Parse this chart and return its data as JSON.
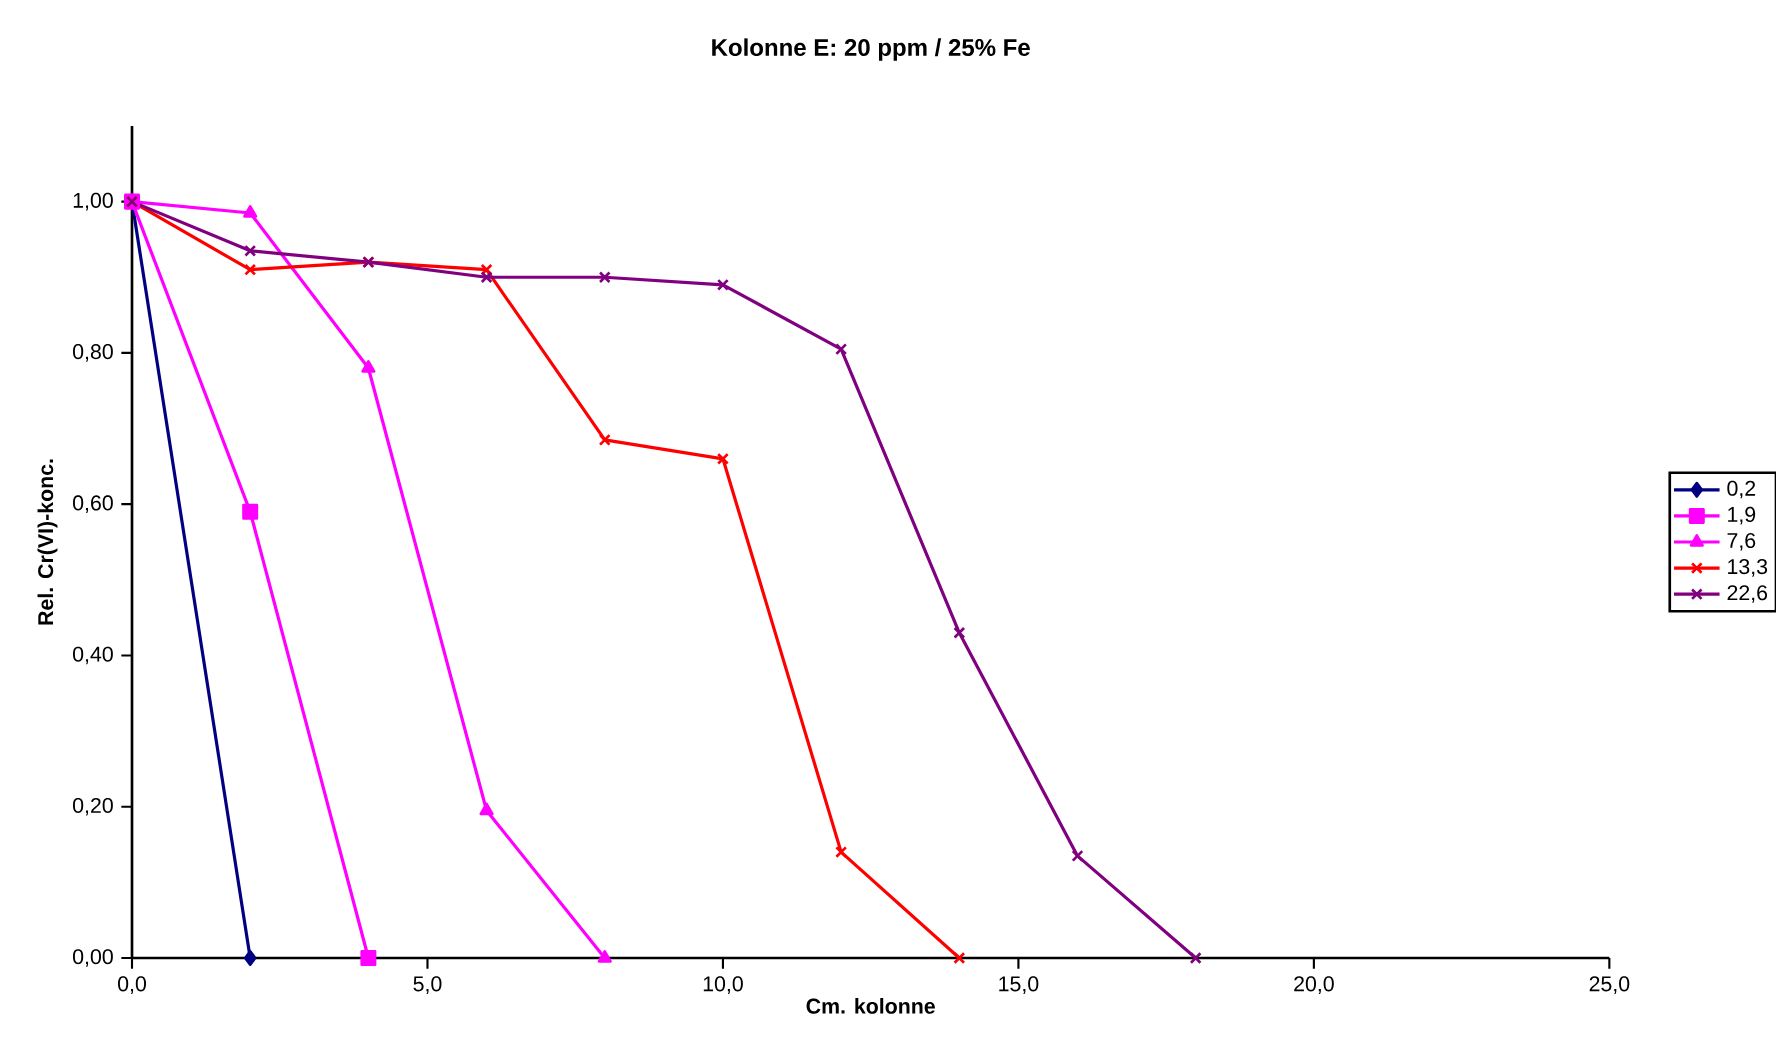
{
  "chart_data": {
    "type": "line",
    "title": "Kolonne E: 20 ppm / 25% Fe",
    "xlabel": "Cm. kolonne",
    "ylabel": "Rel. Cr(VI)-konc.",
    "xlim": [
      0,
      25
    ],
    "ylim": [
      0,
      1.1
    ],
    "xticks": [
      {
        "value": 0,
        "label": "0,0"
      },
      {
        "value": 5,
        "label": "5,0"
      },
      {
        "value": 10,
        "label": "10,0"
      },
      {
        "value": 15,
        "label": "15,0"
      },
      {
        "value": 20,
        "label": "20,0"
      },
      {
        "value": 25,
        "label": "25,0"
      }
    ],
    "yticks": [
      {
        "value": 0,
        "label": "0,00"
      },
      {
        "value": 0.2,
        "label": "0,20"
      },
      {
        "value": 0.4,
        "label": "0,40"
      },
      {
        "value": 0.6,
        "label": "0,60"
      },
      {
        "value": 0.8,
        "label": "0,80"
      },
      {
        "value": 1.0,
        "label": "1,00"
      }
    ],
    "grid": false,
    "legend": "right",
    "line_style": "solid",
    "series": [
      {
        "name": "0,2",
        "color": "#000080",
        "marker": "diamond",
        "x": [
          0,
          2
        ],
        "values": [
          1.0,
          0
        ]
      },
      {
        "name": "1,9",
        "color": "#ff00ff",
        "marker": "square",
        "x": [
          0,
          2,
          4
        ],
        "values": [
          1.0,
          0.59,
          0
        ]
      },
      {
        "name": "7,6",
        "color": "#ff00ff",
        "marker": "triangle",
        "x": [
          0,
          2,
          4,
          6,
          8
        ],
        "values": [
          1.0,
          0.985,
          0.78,
          0.195,
          0
        ]
      },
      {
        "name": "13,3",
        "color": "#ff0000",
        "marker": "cross",
        "x": [
          0,
          2,
          4,
          6,
          8,
          10,
          12,
          14
        ],
        "values": [
          1.0,
          0.91,
          0.92,
          0.91,
          0.685,
          0.66,
          0.14,
          0
        ]
      },
      {
        "name": "22,6",
        "color": "#800080",
        "marker": "cross",
        "x": [
          0,
          2,
          4,
          6,
          8,
          10,
          12,
          14,
          16,
          18
        ],
        "values": [
          1.0,
          0.935,
          0.92,
          0.9,
          0.9,
          0.89,
          0.805,
          0.43,
          0.135,
          0
        ]
      }
    ]
  }
}
